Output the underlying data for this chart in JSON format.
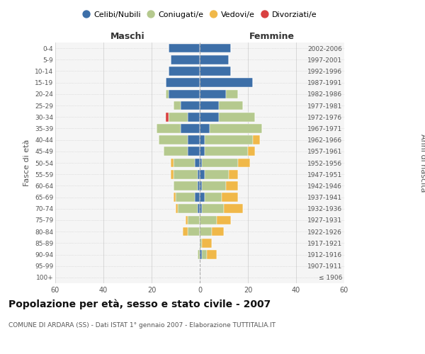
{
  "age_groups": [
    "100+",
    "95-99",
    "90-94",
    "85-89",
    "80-84",
    "75-79",
    "70-74",
    "65-69",
    "60-64",
    "55-59",
    "50-54",
    "45-49",
    "40-44",
    "35-39",
    "30-34",
    "25-29",
    "20-24",
    "15-19",
    "10-14",
    "5-9",
    "0-4"
  ],
  "birth_years": [
    "≤ 1906",
    "1907-1911",
    "1912-1916",
    "1917-1921",
    "1922-1926",
    "1927-1931",
    "1932-1936",
    "1937-1941",
    "1942-1946",
    "1947-1951",
    "1952-1956",
    "1957-1961",
    "1962-1966",
    "1967-1971",
    "1972-1976",
    "1977-1981",
    "1982-1986",
    "1987-1991",
    "1992-1996",
    "1997-2001",
    "2002-2006"
  ],
  "maschi_celibi": [
    0,
    0,
    0,
    0,
    0,
    0,
    1,
    2,
    1,
    1,
    2,
    5,
    5,
    8,
    5,
    8,
    13,
    14,
    13,
    12,
    13
  ],
  "maschi_coniugati": [
    0,
    0,
    1,
    0,
    5,
    5,
    8,
    8,
    10,
    10,
    9,
    10,
    12,
    10,
    8,
    3,
    1,
    0,
    0,
    0,
    0
  ],
  "maschi_vedovi": [
    0,
    0,
    0,
    0,
    2,
    1,
    1,
    1,
    0,
    1,
    1,
    0,
    0,
    0,
    0,
    0,
    0,
    0,
    0,
    0,
    0
  ],
  "maschi_divorziati": [
    0,
    0,
    0,
    0,
    0,
    0,
    0,
    0,
    0,
    0,
    0,
    0,
    0,
    0,
    1,
    0,
    0,
    0,
    0,
    0,
    0
  ],
  "femmine_celibi": [
    0,
    0,
    1,
    0,
    0,
    0,
    1,
    2,
    1,
    2,
    1,
    2,
    2,
    4,
    8,
    8,
    11,
    22,
    13,
    12,
    13
  ],
  "femmine_coniugati": [
    0,
    0,
    2,
    1,
    5,
    7,
    9,
    7,
    10,
    10,
    15,
    18,
    20,
    22,
    15,
    10,
    5,
    0,
    0,
    0,
    0
  ],
  "femmine_vedovi": [
    0,
    0,
    4,
    4,
    5,
    6,
    8,
    7,
    5,
    4,
    5,
    3,
    3,
    0,
    0,
    0,
    0,
    0,
    0,
    0,
    0
  ],
  "femmine_divorziati": [
    0,
    0,
    0,
    0,
    0,
    0,
    0,
    0,
    0,
    0,
    0,
    0,
    0,
    0,
    0,
    0,
    0,
    0,
    0,
    0,
    0
  ],
  "color_celibi": "#3d6fa8",
  "color_coniugati": "#b5c98e",
  "color_vedovi": "#f0b849",
  "color_divorziati": "#d94040",
  "title": "Popolazione per età, sesso e stato civile - 2007",
  "subtitle": "COMUNE DI ARDARA (SS) - Dati ISTAT 1° gennaio 2007 - Elaborazione TUTTITALIA.IT",
  "xlabel_maschi": "Maschi",
  "xlabel_femmine": "Femmine",
  "ylabel_fasce": "Fasce di età",
  "ylabel_anni": "Anni di nascita",
  "xlim": 60,
  "background_color": "#f5f5f5",
  "grid_color": "#cccccc",
  "leg_celibi": "Celibi/Nubili",
  "leg_coniugati": "Coniugati/e",
  "leg_vedovi": "Vedovi/e",
  "leg_divorziati": "Divorziati/e"
}
